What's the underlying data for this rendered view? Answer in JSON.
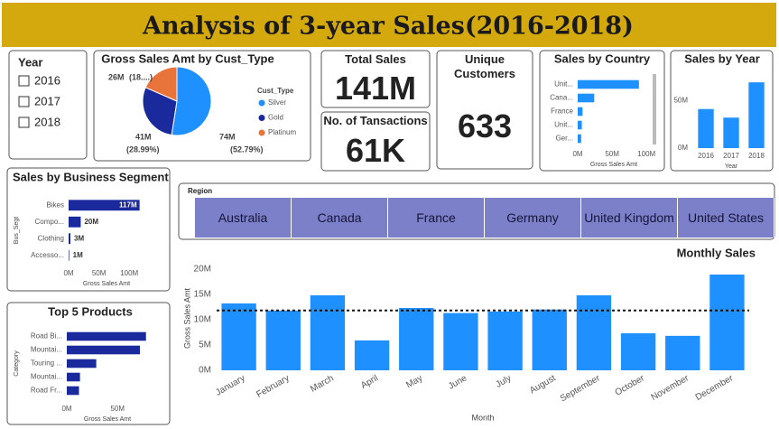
{
  "header": {
    "title": "Analysis of 3-year Sales(2016-2018)"
  },
  "year_slicer": {
    "title": "Year",
    "options": [
      "2016",
      "2017",
      "2018"
    ]
  },
  "cards": [
    {
      "title": "Total Sales",
      "value": "141M"
    },
    {
      "title": "No. of Tansactions",
      "value": "61K"
    },
    {
      "title": "Unique Customers",
      "value": "633"
    }
  ],
  "region_slicer": {
    "title": "Region",
    "options": [
      "Australia",
      "Canada",
      "France",
      "Germany",
      "United Kingdom",
      "United States"
    ]
  },
  "chart_data": [
    {
      "type": "pie",
      "title": "Gross Sales Amt by Cust_Type",
      "legend_title": "Cust_Type",
      "categories": [
        "Silver",
        "Gold",
        "Platinum"
      ],
      "colors": [
        "#1e90ff",
        "#1a2a9c",
        "#e8743b"
      ],
      "values": [
        74,
        41,
        26
      ],
      "value_labels": [
        "74M",
        "41M",
        "26M"
      ],
      "shares": [
        52.79,
        28.99,
        18.22
      ],
      "share_labels": [
        "(52.79%)",
        "(28.99%)",
        "(18....)"
      ]
    },
    {
      "type": "hbar",
      "title": "Sales by Country",
      "categories": [
        "Unit...",
        "Cana...",
        "France",
        "Unit...",
        "Ger..."
      ],
      "values": [
        89,
        24,
        7,
        6,
        5
      ],
      "color": "#1e90ff",
      "xlim": [
        0,
        105
      ],
      "xticks": [
        {
          "value": 0,
          "label": "0M"
        },
        {
          "value": 50,
          "label": "50M"
        },
        {
          "value": 100,
          "label": "100M"
        }
      ],
      "x_label": "Gross Sales Amt"
    },
    {
      "type": "bar",
      "title": "Sales by Year",
      "categories": [
        "2016",
        "2017",
        "2018"
      ],
      "values": [
        41,
        32,
        69
      ],
      "color": "#1e90ff",
      "ylim": [
        0,
        72
      ],
      "yticks": [
        {
          "value": 0,
          "label": "0M"
        },
        {
          "value": 50,
          "label": "50M"
        }
      ],
      "x_label": "Year"
    },
    {
      "type": "hbar",
      "title": "Sales by Business Segment",
      "categories": [
        "Bikes",
        "Compo...",
        "Clothing",
        "Accesso..."
      ],
      "values": [
        117,
        20,
        3,
        1
      ],
      "value_labels": [
        "117M",
        "20M",
        "3M",
        "1M"
      ],
      "color": "#1a2a9c",
      "xlim": [
        0,
        125
      ],
      "xticks": [
        {
          "value": 0,
          "label": "0M"
        },
        {
          "value": 50,
          "label": "50M"
        },
        {
          "value": 100,
          "label": "100M"
        }
      ],
      "x_label": "Gross Sales Amt",
      "y_label": "Bus_Segt"
    },
    {
      "type": "hbar",
      "title": "Top 5 Products",
      "categories": [
        "Road Bi...",
        "Mountai...",
        "Touring ...",
        "Mountai...",
        "Road Fr..."
      ],
      "values": [
        78,
        72,
        29,
        13,
        12
      ],
      "color": "#1a2a9c",
      "xlim": [
        0,
        80
      ],
      "xticks": [
        {
          "value": 0,
          "label": "0M"
        },
        {
          "value": 50,
          "label": "50M"
        }
      ],
      "x_label": "Gross Sales Amt",
      "y_label": "Category"
    },
    {
      "type": "bar",
      "title": "Monthly Sales",
      "categories": [
        "January",
        "February",
        "March",
        "April",
        "May",
        "June",
        "July",
        "August",
        "September",
        "October",
        "November",
        "December"
      ],
      "values": [
        13.2,
        11.8,
        14.8,
        5.9,
        12.3,
        11.3,
        11.6,
        12.0,
        14.8,
        7.3,
        6.8,
        18.9
      ],
      "color": "#1e90ff",
      "ylim": [
        0,
        20.5
      ],
      "yticks": [
        {
          "value": 0,
          "label": "0M"
        },
        {
          "value": 5,
          "label": "5M"
        },
        {
          "value": 10,
          "label": "10M"
        },
        {
          "value": 15,
          "label": "15M"
        },
        {
          "value": 20,
          "label": "20M"
        }
      ],
      "average": 11.8,
      "x_label": "Month",
      "y_label": "Gross Sales Amt"
    }
  ]
}
